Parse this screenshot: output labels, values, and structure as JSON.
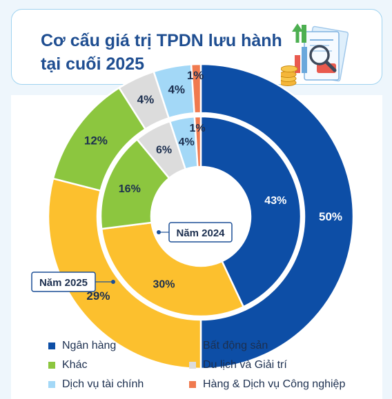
{
  "header": {
    "title_line1": "Cơ cấu giá trị TPDN lưu hành",
    "title_line2": "tại cuối 2025"
  },
  "chart_data": {
    "type": "donut",
    "title": "Cơ cấu giá trị TPDN lưu hành tại cuối 2025",
    "categories": [
      "Ngân hàng",
      "Bất động sản",
      "Khác",
      "Du lịch và Giải trí",
      "Dịch vụ tài chính",
      "Hàng & Dịch vụ Công nghiệp"
    ],
    "colors": [
      "#0d4ea6",
      "#fcc02e",
      "#8cc63f",
      "#dcdcdc",
      "#a3d8f7",
      "#f07a4f"
    ],
    "series": [
      {
        "name": "Năm 2025",
        "ring": "outer",
        "values": [
          50,
          29,
          12,
          4,
          4,
          1
        ],
        "labels": [
          "50%",
          "29%",
          "12%",
          "4%",
          "4%",
          "1%"
        ]
      },
      {
        "name": "Năm 2024",
        "ring": "inner",
        "values": [
          43,
          30,
          16,
          6,
          4,
          1
        ],
        "labels": [
          "43%",
          "30%",
          "16%",
          "6%",
          "4%",
          "1%"
        ]
      }
    ],
    "legend_position": "bottom"
  }
}
